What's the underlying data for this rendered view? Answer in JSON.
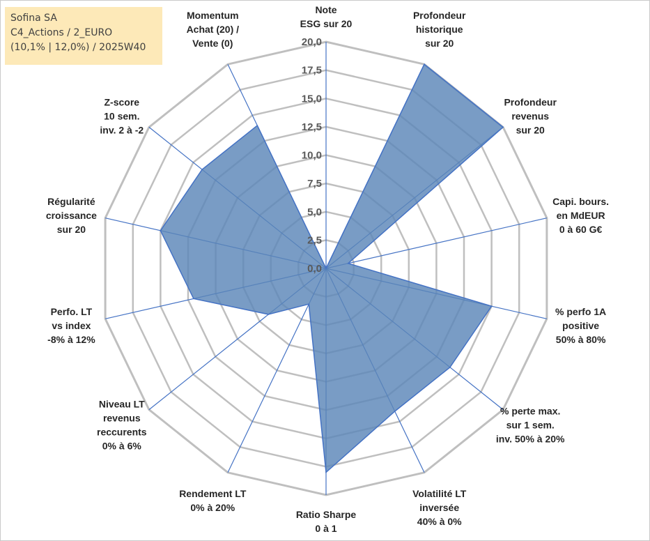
{
  "info_box": {
    "line1": "Sofina SA",
    "line2": "C4_Actions / 2_EURO",
    "line3": "(10,1% | 12,0%) / 2025W40"
  },
  "colors": {
    "fill": "#5b86b8",
    "stroke": "#4472c4",
    "grid": "#bfbfbf",
    "spoke": "#4472c4",
    "info_bg": "#fde9b8"
  },
  "chart_data": {
    "type": "radar",
    "title": "",
    "rmin": 0,
    "rmax": 20,
    "ticks": [
      "0,0",
      "2,5",
      "5,0",
      "7,5",
      "10,0",
      "12,5",
      "15,0",
      "17,5",
      "20,0"
    ],
    "categories": [
      [
        "Note",
        "ESG sur 20"
      ],
      [
        "Profondeur",
        "historique",
        "sur 20"
      ],
      [
        "Profondeur",
        "revenus",
        "sur 20"
      ],
      [
        "Capi. bours.",
        "en MdEUR",
        "0 à 60 G€"
      ],
      [
        "% perfo 1A",
        "positive",
        "50% à 80%"
      ],
      [
        "% perte max.",
        "sur 1 sem.",
        "inv. 50% à 20%"
      ],
      [
        "Volatilité LT",
        "inversée",
        "40% à 0%"
      ],
      [
        "Ratio Sharpe",
        "0 à 1"
      ],
      [
        "Rendement LT",
        "0% à 20%"
      ],
      [
        "Niveau LT",
        "revenus",
        "reccurents",
        "0% à 6%"
      ],
      [
        "Perfo. LT",
        "vs index",
        "-8% à 12%"
      ],
      [
        "Régularité",
        "croissance",
        "sur 20"
      ],
      [
        "Z-score",
        "10 sem.",
        "inv. 2 à -2"
      ],
      [
        "Momentum",
        "Achat (20) /",
        "Vente (0)"
      ]
    ],
    "series": [
      {
        "values": [
          0,
          20,
          20,
          2.0,
          15.0,
          14.0,
          14.0,
          18.0,
          3.5,
          6.5,
          12.0,
          15.0,
          14.0,
          14.0
        ]
      }
    ],
    "grid": true,
    "legend": "none"
  }
}
